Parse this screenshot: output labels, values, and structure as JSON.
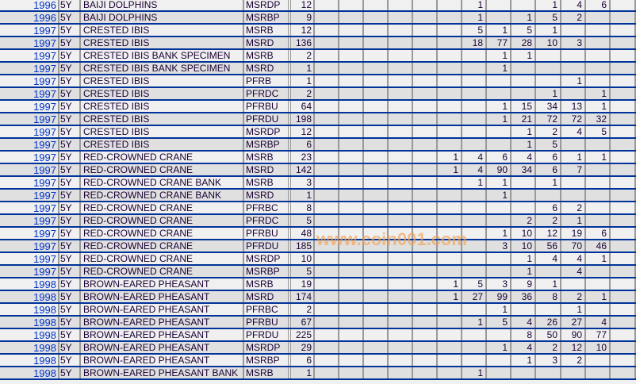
{
  "colors": {
    "row_light": "#f0f0f0",
    "row_dark": "#e0e0e0",
    "row_line": "#003399",
    "year_link": "#0033cc",
    "watermark": "#f5a050"
  },
  "watermark": "www.coin001.com",
  "rows": [
    {
      "year": "1996",
      "denom": "5Y",
      "name": "BAIJI DOLPHINS",
      "type": "MSRDP",
      "total": "12",
      "counts": [
        "",
        "",
        "",
        "",
        "",
        "",
        "1",
        "",
        "",
        "1",
        "4",
        "6",
        ""
      ]
    },
    {
      "year": "1996",
      "denom": "5Y",
      "name": "BAIJI DOLPHINS",
      "type": "MSRBP",
      "total": "9",
      "counts": [
        "",
        "",
        "",
        "",
        "",
        "",
        "1",
        "",
        "1",
        "5",
        "2",
        "",
        ""
      ]
    },
    {
      "year": "1997",
      "denom": "5Y",
      "name": "CRESTED IBIS",
      "type": "MSRB",
      "total": "12",
      "counts": [
        "",
        "",
        "",
        "",
        "",
        "",
        "5",
        "1",
        "5",
        "1",
        "",
        "",
        ""
      ]
    },
    {
      "year": "1997",
      "denom": "5Y",
      "name": "CRESTED IBIS",
      "type": "MSRD",
      "total": "136",
      "counts": [
        "",
        "",
        "",
        "",
        "",
        "",
        "18",
        "77",
        "28",
        "10",
        "3",
        "",
        ""
      ]
    },
    {
      "year": "1997",
      "denom": "5Y",
      "name": "CRESTED IBIS BANK SPECIMEN",
      "type": "MSRB",
      "total": "2",
      "counts": [
        "",
        "",
        "",
        "",
        "",
        "",
        "",
        "1",
        "1",
        "",
        "",
        "",
        ""
      ]
    },
    {
      "year": "1997",
      "denom": "5Y",
      "name": "CRESTED IBIS BANK SPECIMEN",
      "type": "MSRD",
      "total": "1",
      "counts": [
        "",
        "",
        "",
        "",
        "",
        "",
        "",
        "1",
        "",
        "",
        "",
        "",
        ""
      ]
    },
    {
      "year": "1997",
      "denom": "5Y",
      "name": "CRESTED IBIS",
      "type": "PFRB",
      "total": "1",
      "counts": [
        "",
        "",
        "",
        "",
        "",
        "",
        "",
        "",
        "",
        "",
        "1",
        "",
        ""
      ]
    },
    {
      "year": "1997",
      "denom": "5Y",
      "name": "CRESTED IBIS",
      "type": "PFRDC",
      "total": "2",
      "counts": [
        "",
        "",
        "",
        "",
        "",
        "",
        "",
        "",
        "",
        "1",
        "",
        "1",
        ""
      ]
    },
    {
      "year": "1997",
      "denom": "5Y",
      "name": "CRESTED IBIS",
      "type": "PFRBU",
      "total": "64",
      "counts": [
        "",
        "",
        "",
        "",
        "",
        "",
        "",
        "1",
        "15",
        "34",
        "13",
        "1",
        ""
      ]
    },
    {
      "year": "1997",
      "denom": "5Y",
      "name": "CRESTED IBIS",
      "type": "PFRDU",
      "total": "198",
      "counts": [
        "",
        "",
        "",
        "",
        "",
        "",
        "",
        "1",
        "21",
        "72",
        "72",
        "32",
        ""
      ]
    },
    {
      "year": "1997",
      "denom": "5Y",
      "name": "CRESTED IBIS",
      "type": "MSRDP",
      "total": "12",
      "counts": [
        "",
        "",
        "",
        "",
        "",
        "",
        "",
        "",
        "1",
        "2",
        "4",
        "5",
        ""
      ]
    },
    {
      "year": "1997",
      "denom": "5Y",
      "name": "CRESTED IBIS",
      "type": "MSRBP",
      "total": "6",
      "counts": [
        "",
        "",
        "",
        "",
        "",
        "",
        "",
        "",
        "1",
        "5",
        "",
        "",
        ""
      ]
    },
    {
      "year": "1997",
      "denom": "5Y",
      "name": "RED-CROWNED CRANE",
      "type": "MSRB",
      "total": "23",
      "counts": [
        "",
        "",
        "",
        "",
        "",
        "1",
        "4",
        "6",
        "4",
        "6",
        "1",
        "1",
        ""
      ]
    },
    {
      "year": "1997",
      "denom": "5Y",
      "name": "RED-CROWNED CRANE",
      "type": "MSRD",
      "total": "142",
      "counts": [
        "",
        "",
        "",
        "",
        "",
        "1",
        "4",
        "90",
        "34",
        "6",
        "7",
        "",
        ""
      ]
    },
    {
      "year": "1997",
      "denom": "5Y",
      "name": "RED-CROWNED CRANE BANK",
      "type": "MSRB",
      "total": "3",
      "counts": [
        "",
        "",
        "",
        "",
        "",
        "",
        "1",
        "1",
        "",
        "1",
        "",
        "",
        ""
      ]
    },
    {
      "year": "1997",
      "denom": "5Y",
      "name": "RED-CROWNED CRANE BANK",
      "type": "MSRD",
      "total": "1",
      "counts": [
        "",
        "",
        "",
        "",
        "",
        "",
        "",
        "1",
        "",
        "",
        "",
        "",
        ""
      ]
    },
    {
      "year": "1997",
      "denom": "5Y",
      "name": "RED-CROWNED CRANE",
      "type": "PFRBC",
      "total": "8",
      "counts": [
        "",
        "",
        "",
        "",
        "",
        "",
        "",
        "",
        "",
        "6",
        "2",
        "",
        ""
      ]
    },
    {
      "year": "1997",
      "denom": "5Y",
      "name": "RED-CROWNED CRANE",
      "type": "PFRDC",
      "total": "5",
      "counts": [
        "",
        "",
        "",
        "",
        "",
        "",
        "",
        "",
        "2",
        "2",
        "1",
        "",
        ""
      ]
    },
    {
      "year": "1997",
      "denom": "5Y",
      "name": "RED-CROWNED CRANE",
      "type": "PFRBU",
      "total": "48",
      "counts": [
        "",
        "",
        "",
        "",
        "",
        "",
        "",
        "1",
        "10",
        "12",
        "19",
        "6",
        ""
      ]
    },
    {
      "year": "1997",
      "denom": "5Y",
      "name": "RED-CROWNED CRANE",
      "type": "PFRDU",
      "total": "185",
      "counts": [
        "",
        "",
        "",
        "",
        "",
        "",
        "",
        "3",
        "10",
        "56",
        "70",
        "46",
        ""
      ]
    },
    {
      "year": "1997",
      "denom": "5Y",
      "name": "RED-CROWNED CRANE",
      "type": "MSRDP",
      "total": "10",
      "counts": [
        "",
        "",
        "",
        "",
        "",
        "",
        "",
        "",
        "1",
        "4",
        "4",
        "1",
        ""
      ]
    },
    {
      "year": "1997",
      "denom": "5Y",
      "name": "RED-CROWNED CRANE",
      "type": "MSRBP",
      "total": "5",
      "counts": [
        "",
        "",
        "",
        "",
        "",
        "",
        "",
        "",
        "1",
        "",
        "4",
        "",
        ""
      ]
    },
    {
      "year": "1998",
      "denom": "5Y",
      "name": "BROWN-EARED PHEASANT",
      "type": "MSRB",
      "total": "19",
      "counts": [
        "",
        "",
        "",
        "",
        "",
        "1",
        "5",
        "3",
        "9",
        "1",
        "",
        "",
        ""
      ]
    },
    {
      "year": "1998",
      "denom": "5Y",
      "name": "BROWN-EARED PHEASANT",
      "type": "MSRD",
      "total": "174",
      "counts": [
        "",
        "",
        "",
        "",
        "",
        "1",
        "27",
        "99",
        "36",
        "8",
        "2",
        "1",
        ""
      ]
    },
    {
      "year": "1998",
      "denom": "5Y",
      "name": "BROWN-EARED PHEASANT",
      "type": "PFRBC",
      "total": "2",
      "counts": [
        "",
        "",
        "",
        "",
        "",
        "",
        "",
        "1",
        "",
        "",
        "1",
        "",
        ""
      ]
    },
    {
      "year": "1998",
      "denom": "5Y",
      "name": "BROWN-EARED PHEASANT",
      "type": "PFRBU",
      "total": "67",
      "counts": [
        "",
        "",
        "",
        "",
        "",
        "",
        "1",
        "5",
        "4",
        "26",
        "27",
        "4",
        ""
      ]
    },
    {
      "year": "1998",
      "denom": "5Y",
      "name": "BROWN-EARED PHEASANT",
      "type": "PFRDU",
      "total": "225",
      "counts": [
        "",
        "",
        "",
        "",
        "",
        "",
        "",
        "",
        "8",
        "50",
        "90",
        "77",
        ""
      ]
    },
    {
      "year": "1998",
      "denom": "5Y",
      "name": "BROWN-EARED PHEASANT",
      "type": "MSRDP",
      "total": "29",
      "counts": [
        "",
        "",
        "",
        "",
        "",
        "",
        "",
        "1",
        "4",
        "2",
        "12",
        "10",
        ""
      ]
    },
    {
      "year": "1998",
      "denom": "5Y",
      "name": "BROWN-EARED PHEASANT",
      "type": "MSRBP",
      "total": "6",
      "counts": [
        "",
        "",
        "",
        "",
        "",
        "",
        "",
        "",
        "1",
        "3",
        "2",
        "",
        ""
      ]
    },
    {
      "year": "1998",
      "denom": "5Y",
      "name": "BROWN-EARED PHEASANT BANK",
      "type": "MSRB",
      "total": "1",
      "counts": [
        "",
        "",
        "",
        "",
        "",
        "",
        "1",
        "",
        "",
        "",
        "",
        "",
        ""
      ]
    }
  ]
}
